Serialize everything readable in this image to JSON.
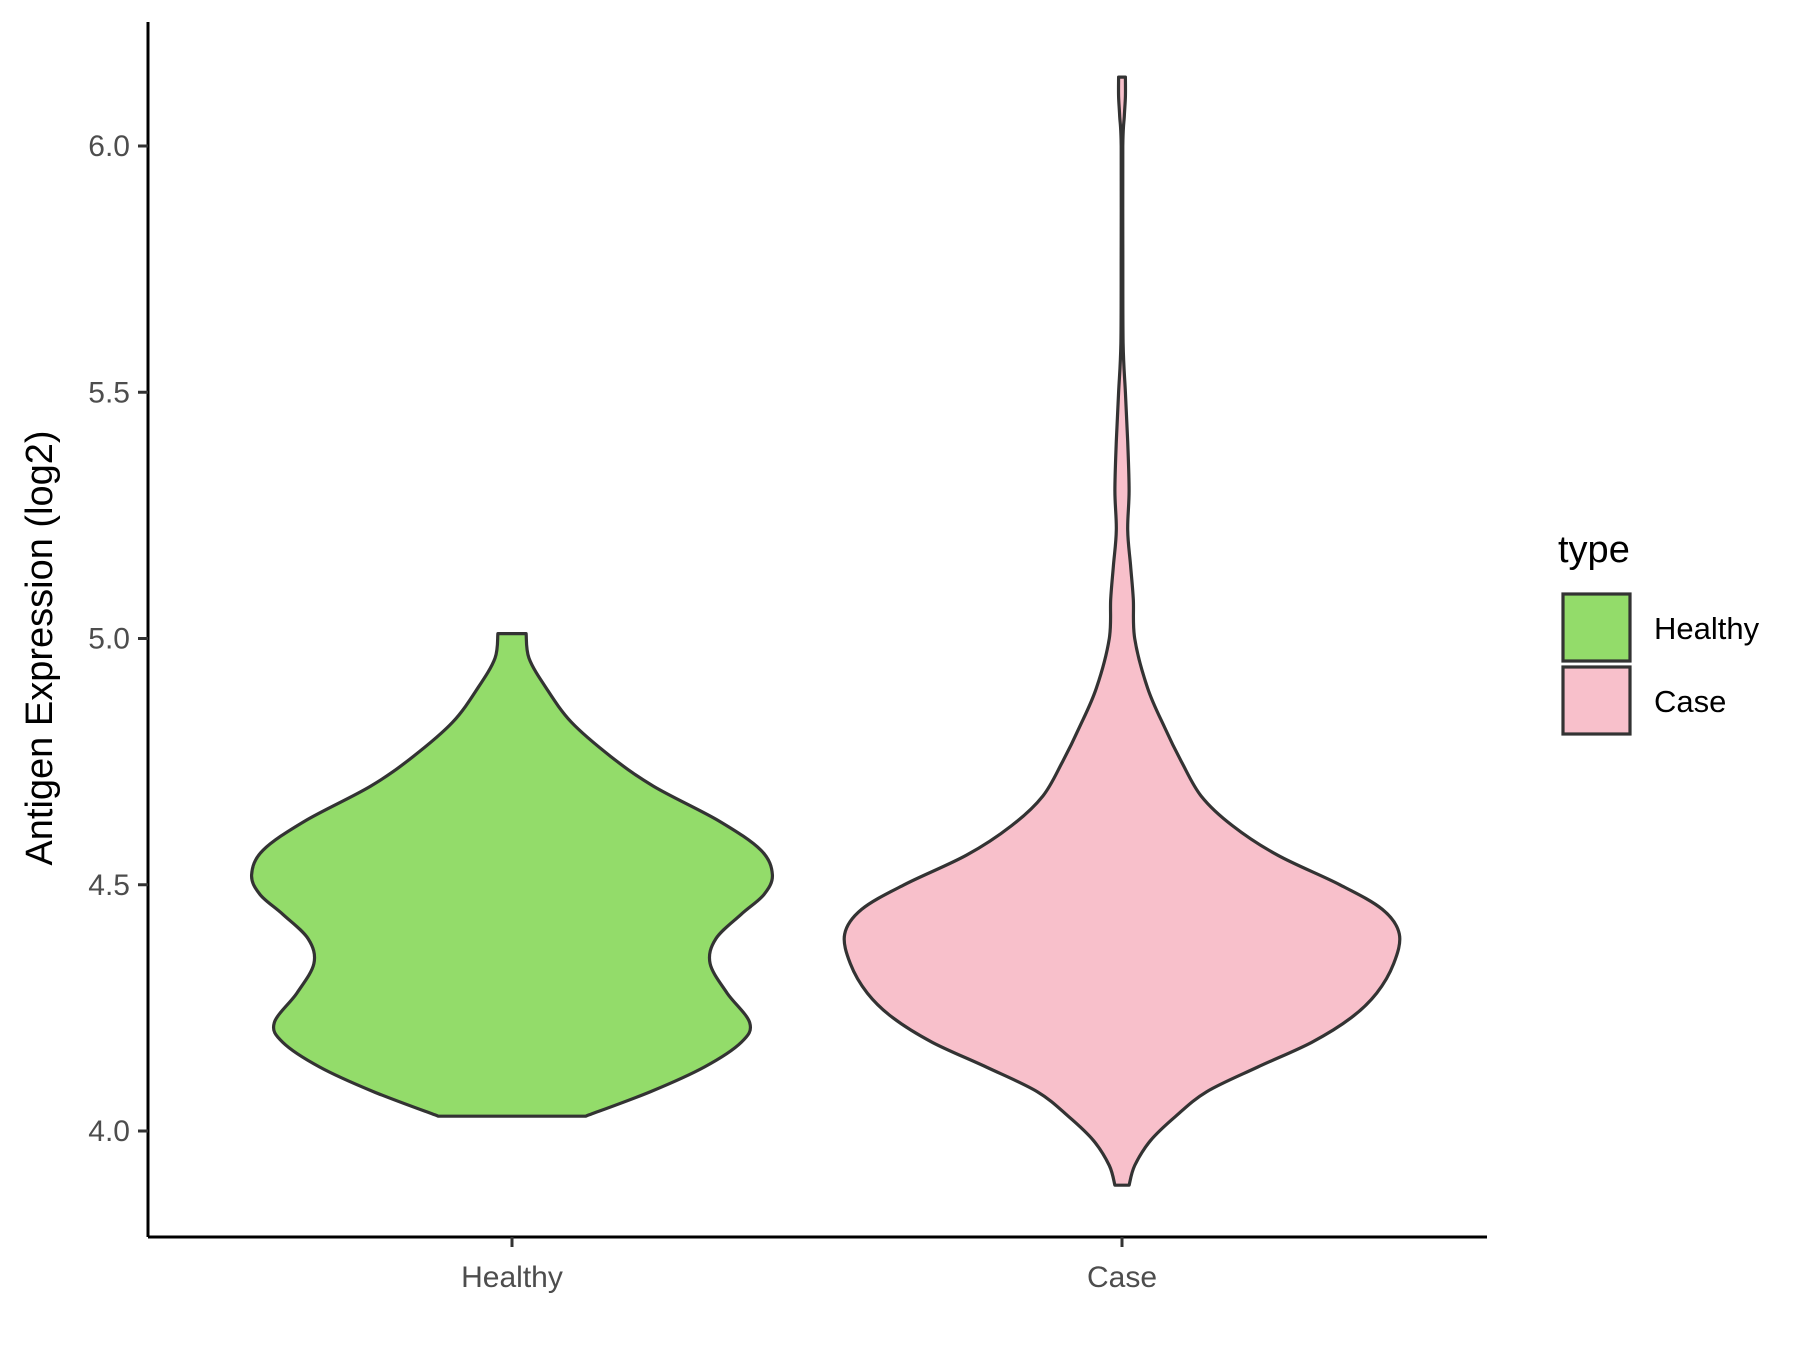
{
  "chart_data": {
    "type": "violin",
    "title": "",
    "xlabel": "",
    "ylabel": "Antigen Expression (log2)",
    "ylim": [
      3.78,
      6.25
    ],
    "yticks": [
      4.0,
      4.5,
      5.0,
      5.5,
      6.0
    ],
    "ytick_labels": [
      "4.0",
      "4.5",
      "5.0",
      "5.5",
      "6.0"
    ],
    "categories": [
      "Healthy",
      "Case"
    ],
    "grid": false,
    "legend": {
      "title": "type",
      "position": "right",
      "entries": [
        "Healthy",
        "Case"
      ]
    },
    "series": [
      {
        "name": "Healthy",
        "color": "#93dc6a",
        "range": [
          4.03,
          5.01
        ],
        "density_profile": [
          {
            "y": 4.03,
            "w": 0.26
          },
          {
            "y": 4.08,
            "w": 0.49
          },
          {
            "y": 4.13,
            "w": 0.68
          },
          {
            "y": 4.18,
            "w": 0.81
          },
          {
            "y": 4.22,
            "w": 0.84
          },
          {
            "y": 4.28,
            "w": 0.76
          },
          {
            "y": 4.34,
            "w": 0.7
          },
          {
            "y": 4.39,
            "w": 0.72
          },
          {
            "y": 4.44,
            "w": 0.81
          },
          {
            "y": 4.48,
            "w": 0.89
          },
          {
            "y": 4.52,
            "w": 0.92
          },
          {
            "y": 4.57,
            "w": 0.88
          },
          {
            "y": 4.63,
            "w": 0.73
          },
          {
            "y": 4.7,
            "w": 0.5
          },
          {
            "y": 4.76,
            "w": 0.35
          },
          {
            "y": 4.83,
            "w": 0.21
          },
          {
            "y": 4.9,
            "w": 0.12
          },
          {
            "y": 4.96,
            "w": 0.06
          },
          {
            "y": 5.01,
            "w": 0.05
          }
        ]
      },
      {
        "name": "Case",
        "color": "#f8c0cb",
        "range": [
          3.89,
          6.14
        ],
        "density_profile": [
          {
            "y": 3.89,
            "w": 0.025
          },
          {
            "y": 3.93,
            "w": 0.045
          },
          {
            "y": 3.98,
            "w": 0.1
          },
          {
            "y": 4.03,
            "w": 0.19
          },
          {
            "y": 4.08,
            "w": 0.3
          },
          {
            "y": 4.13,
            "w": 0.48
          },
          {
            "y": 4.18,
            "w": 0.67
          },
          {
            "y": 4.23,
            "w": 0.81
          },
          {
            "y": 4.28,
            "w": 0.9
          },
          {
            "y": 4.34,
            "w": 0.96
          },
          {
            "y": 4.4,
            "w": 0.98
          },
          {
            "y": 4.45,
            "w": 0.92
          },
          {
            "y": 4.5,
            "w": 0.77
          },
          {
            "y": 4.56,
            "w": 0.55
          },
          {
            "y": 4.62,
            "w": 0.39
          },
          {
            "y": 4.68,
            "w": 0.28
          },
          {
            "y": 4.75,
            "w": 0.21
          },
          {
            "y": 4.82,
            "w": 0.15
          },
          {
            "y": 4.9,
            "w": 0.09
          },
          {
            "y": 5.0,
            "w": 0.045
          },
          {
            "y": 5.08,
            "w": 0.04
          },
          {
            "y": 5.15,
            "w": 0.03
          },
          {
            "y": 5.22,
            "w": 0.02
          },
          {
            "y": 5.3,
            "w": 0.025
          },
          {
            "y": 5.4,
            "w": 0.02
          },
          {
            "y": 5.5,
            "w": 0.012
          },
          {
            "y": 5.6,
            "w": 0.004
          },
          {
            "y": 5.8,
            "w": 0.003
          },
          {
            "y": 6.0,
            "w": 0.003
          },
          {
            "y": 6.06,
            "w": 0.008
          },
          {
            "y": 6.1,
            "w": 0.012
          },
          {
            "y": 6.14,
            "w": 0.012
          }
        ]
      }
    ]
  }
}
